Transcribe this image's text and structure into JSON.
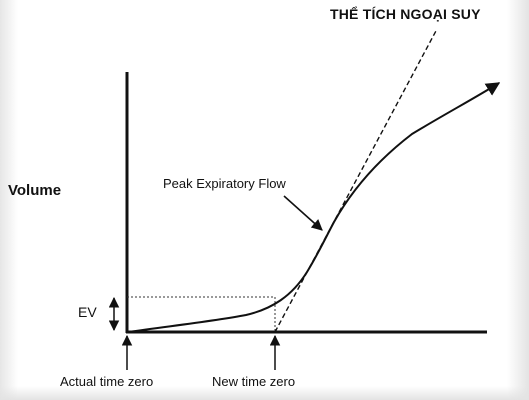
{
  "labels": {
    "title": "THỂ TÍCH NGOẠI SUY",
    "volume": "Volume",
    "peak_flow": "Peak Expiratory Flow",
    "ev": "EV",
    "actual_time_zero": "Actual time zero",
    "new_time_zero": "New time zero"
  },
  "colors": {
    "stroke": "#111111",
    "background": "#ffffff"
  }
}
